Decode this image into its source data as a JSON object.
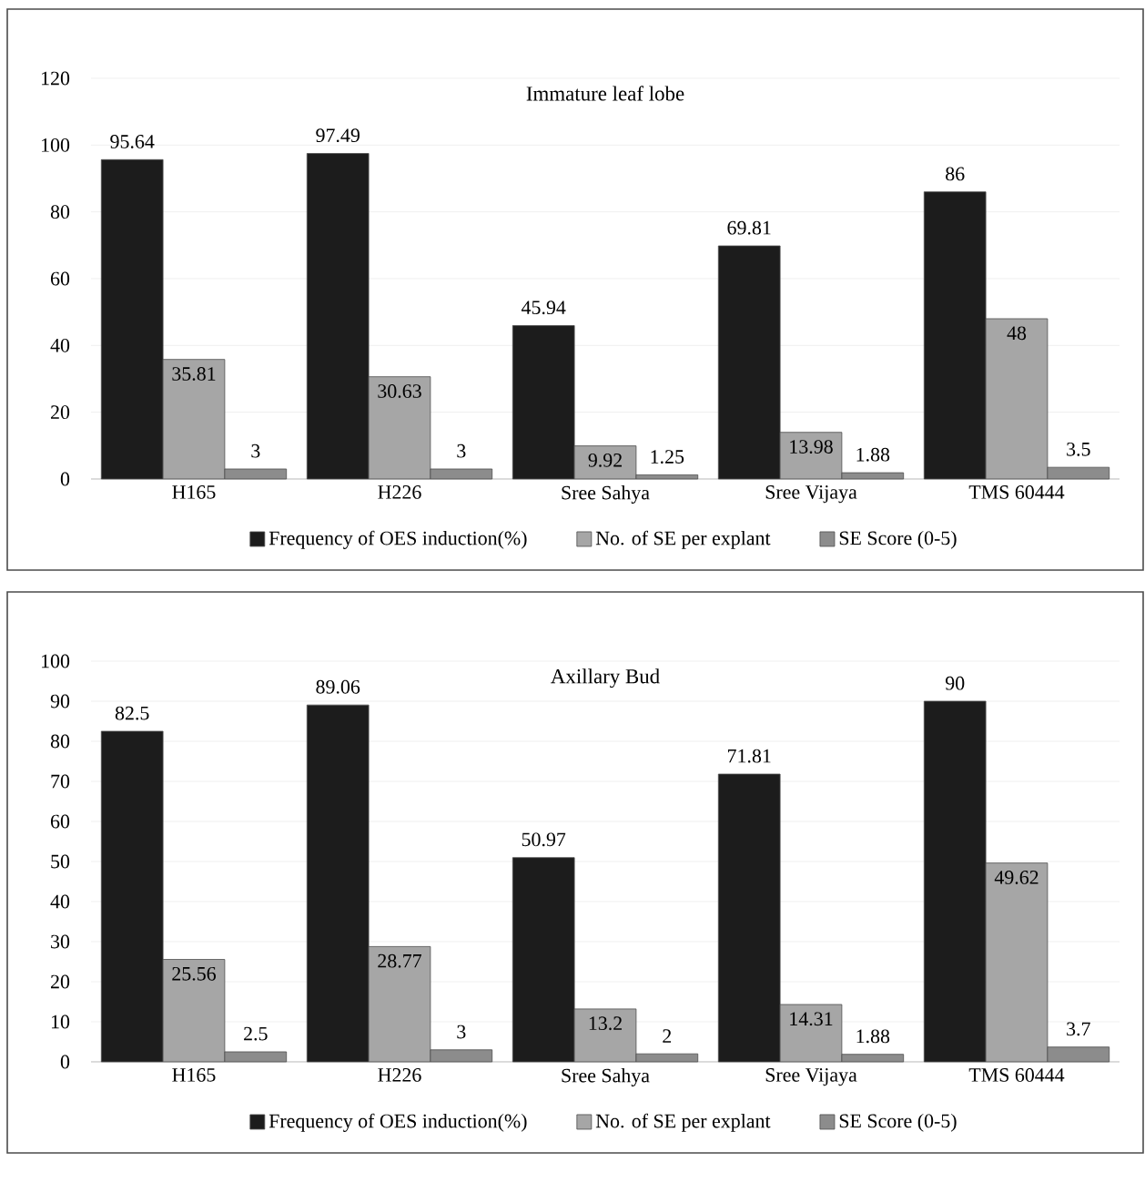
{
  "chart_data": [
    {
      "type": "bar",
      "title": "Immature leaf lobe",
      "categories": [
        "H165",
        "H226",
        "Sree Sahya",
        "Sree Vijaya",
        "TMS 60444"
      ],
      "series": [
        {
          "name": "Frequency of OES induction(%)",
          "color": "#1c1c1c",
          "values": [
            95.64,
            97.49,
            45.94,
            69.81,
            86
          ]
        },
        {
          "name": "No. of SE per explant",
          "color": "#a6a6a6",
          "values": [
            35.81,
            30.63,
            9.92,
            13.98,
            48
          ]
        },
        {
          "name": "SE Score (0-5)",
          "color": "#8c8c8c",
          "values": [
            3,
            3,
            1.25,
            1.88,
            3.5
          ]
        }
      ],
      "ylim": [
        0,
        120
      ],
      "yticks": [
        0,
        20,
        40,
        60,
        80,
        100,
        120
      ],
      "grid": "y",
      "legend": "bottom",
      "data_labels": true
    },
    {
      "type": "bar",
      "title": "Axillary Bud",
      "categories": [
        "H165",
        "H226",
        "Sree Sahya",
        "Sree Vijaya",
        "TMS 60444"
      ],
      "series": [
        {
          "name": "Frequency of OES induction(%)",
          "color": "#1c1c1c",
          "values": [
            82.5,
            89.06,
            50.97,
            71.81,
            90
          ]
        },
        {
          "name": "No. of SE per explant",
          "color": "#a6a6a6",
          "values": [
            25.56,
            28.77,
            13.2,
            14.31,
            49.62
          ]
        },
        {
          "name": "SE Score (0-5)",
          "color": "#8c8c8c",
          "values": [
            2.5,
            3,
            2,
            1.88,
            3.7
          ]
        }
      ],
      "ylim": [
        0,
        100
      ],
      "yticks": [
        0,
        10,
        20,
        30,
        40,
        50,
        60,
        70,
        80,
        90,
        100
      ],
      "grid": "y",
      "legend": "bottom",
      "data_labels": true
    }
  ]
}
